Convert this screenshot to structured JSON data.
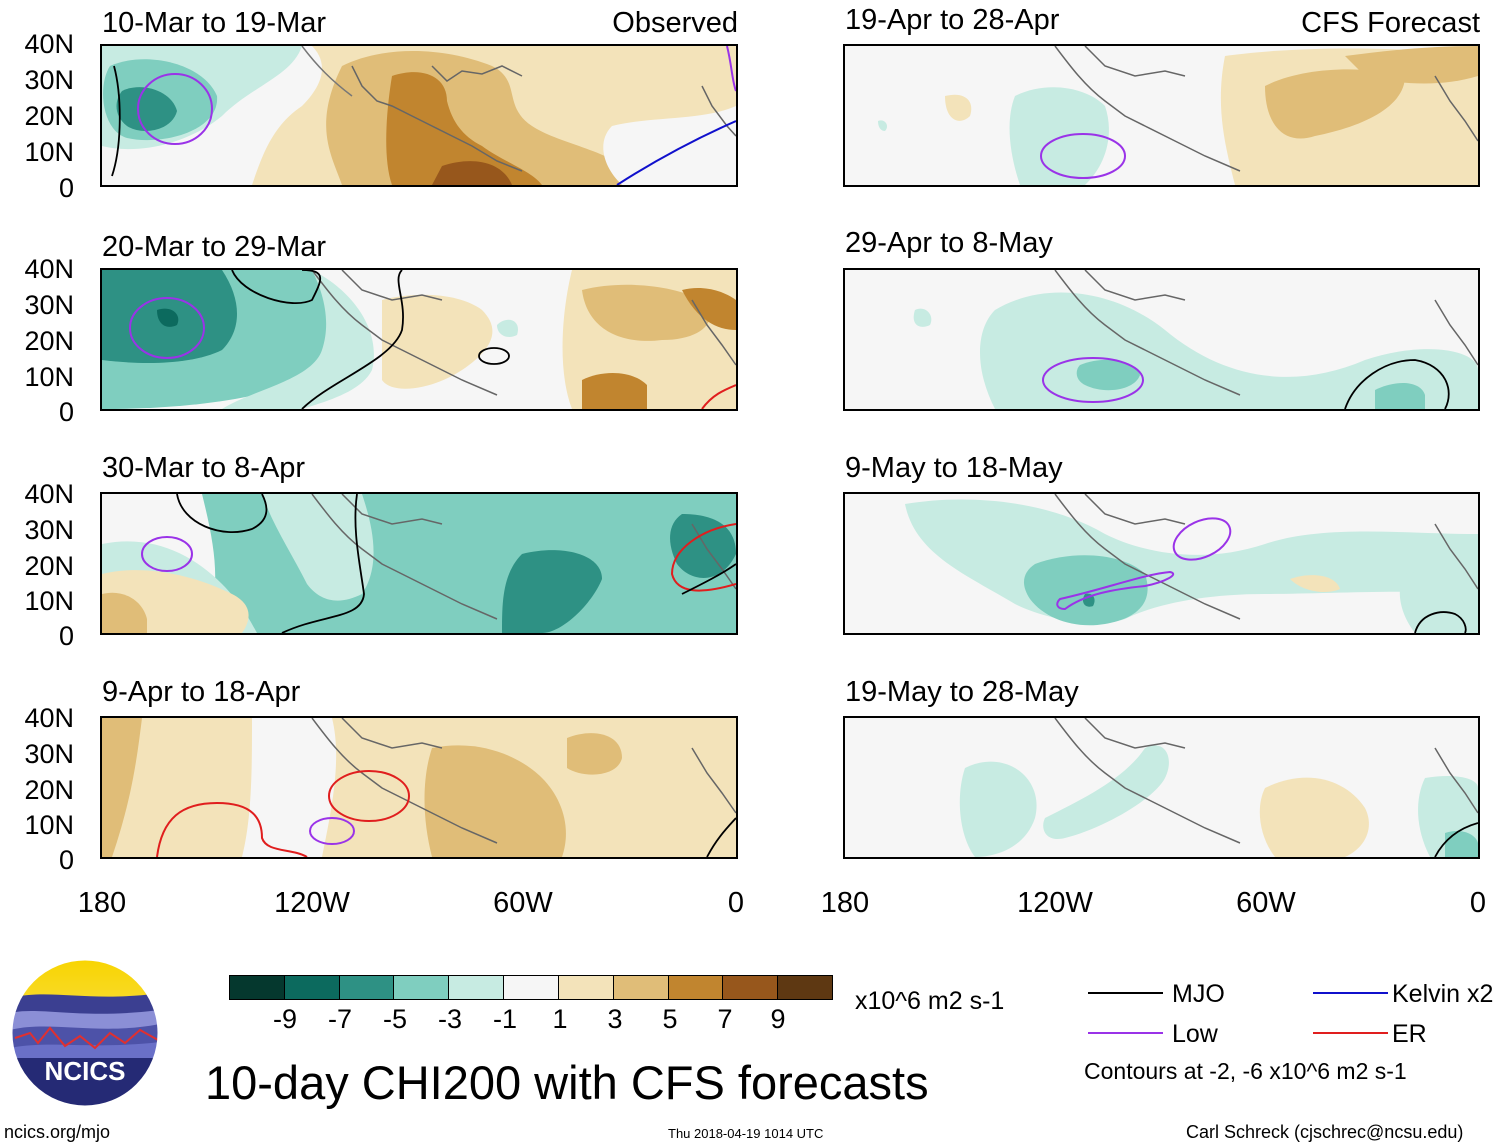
{
  "panels": {
    "obs1": {
      "title": "10-Mar to 19-Mar",
      "tag": "Observed"
    },
    "obs2": {
      "title": "20-Mar to 29-Mar"
    },
    "obs3": {
      "title": "30-Mar to 8-Apr"
    },
    "obs4": {
      "title": "9-Apr to 18-Apr"
    },
    "fc1": {
      "title": "19-Apr to 28-Apr",
      "tag": "CFS Forecast"
    },
    "fc2": {
      "title": "29-Apr to 8-May"
    },
    "fc3": {
      "title": "9-May to 18-May"
    },
    "fc4": {
      "title": "19-May to 28-May"
    }
  },
  "axes": {
    "lat_ticks": [
      "40N",
      "30N",
      "20N",
      "10N",
      "0"
    ],
    "lon_ticks": [
      "180",
      "120W",
      "60W",
      "0"
    ]
  },
  "colorbar": {
    "labels": [
      "-9",
      "-7",
      "-5",
      "-3",
      "-1",
      "1",
      "3",
      "5",
      "7",
      "9"
    ],
    "colors": [
      "#05382e",
      "#0c6a5e",
      "#2e9184",
      "#7fcebf",
      "#c7ebe2",
      "#f6f6f6",
      "#f3e3ba",
      "#e0bd78",
      "#c1852f",
      "#97571c",
      "#5e3812"
    ],
    "units": "x10^6 m2 s-1"
  },
  "title": "10-day CHI200 with CFS forecasts",
  "legend": {
    "mjo": {
      "label": "MJO",
      "color": "#000000"
    },
    "kelvin": {
      "label": "Kelvin x2",
      "color": "#1010cc"
    },
    "low": {
      "label": "Low",
      "color": "#9a33e8"
    },
    "er": {
      "label": "ER",
      "color": "#e01e1e"
    },
    "note": "Contours at -2, -6 x10^6 m2 s-1"
  },
  "logo": {
    "text": "NCICS"
  },
  "footer": {
    "url": "ncics.org/mjo",
    "timestamp": "Thu 2018-04-19 1014 UTC",
    "credit": "Carl Schreck (cjschrec@ncsu.edu)"
  }
}
